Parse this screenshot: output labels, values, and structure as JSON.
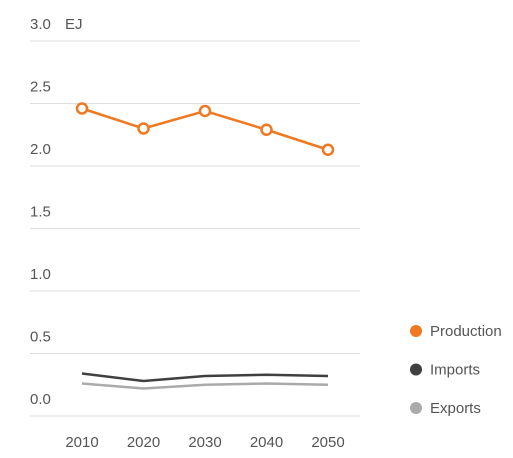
{
  "chart_data": {
    "type": "line",
    "unit": "EJ",
    "categories": [
      "2010",
      "2020",
      "2030",
      "2040",
      "2050"
    ],
    "series": [
      {
        "name": "Production",
        "color": "#f07820",
        "markers": true,
        "values": [
          2.46,
          2.3,
          2.44,
          2.29,
          2.13
        ]
      },
      {
        "name": "Imports",
        "color": "#404040",
        "markers": false,
        "values": [
          0.34,
          0.28,
          0.32,
          0.33,
          0.32
        ]
      },
      {
        "name": "Exports",
        "color": "#aaaaaa",
        "markers": false,
        "values": [
          0.26,
          0.22,
          0.25,
          0.26,
          0.25
        ]
      }
    ],
    "ylim": [
      0,
      3
    ],
    "yticks": [
      {
        "value": 0,
        "label": "0.0"
      },
      0.5,
      {
        "value": 1,
        "label": "1.0"
      },
      1.5,
      {
        "value": 2,
        "label": "2.0"
      },
      2.5,
      {
        "value": 3,
        "label": "3.0"
      }
    ],
    "grid": true,
    "legend": "right"
  }
}
